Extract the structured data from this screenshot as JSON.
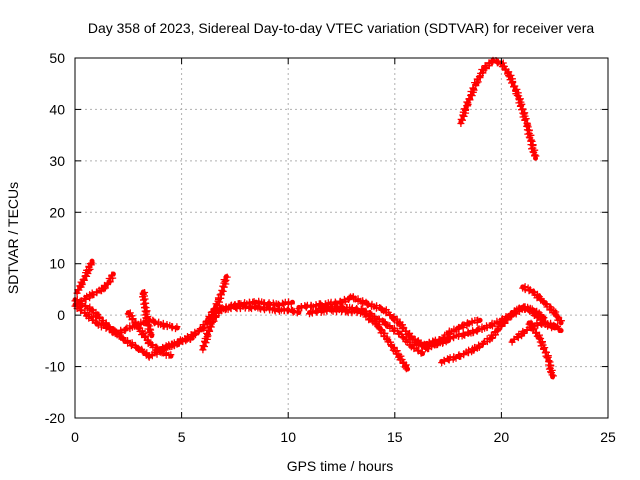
{
  "chart_data": {
    "type": "scatter",
    "title": "Day 358 of 2023, Sidereal Day-to-day VTEC variation (SDTVAR) for receiver vera",
    "xlabel": "GPS time / hours",
    "ylabel": "SDTVAR / TECUs",
    "xlim": [
      0,
      25
    ],
    "ylim": [
      -20,
      50
    ],
    "xticks": [
      0,
      5,
      10,
      15,
      20,
      25
    ],
    "yticks": [
      -20,
      -10,
      0,
      10,
      20,
      30,
      40,
      50
    ],
    "grid": true,
    "marker": "+",
    "color": "#ff0000",
    "series": [
      {
        "name": "trace-1",
        "points": [
          [
            0.0,
            3.0
          ],
          [
            0.8,
            1.0
          ],
          [
            1.5,
            -2.0
          ],
          [
            2.2,
            -4.5
          ],
          [
            3.0,
            -6.5
          ],
          [
            3.5,
            -8.0
          ],
          [
            4.2,
            -6.5
          ],
          [
            5.0,
            -5.0
          ],
          [
            5.5,
            -4.5
          ]
        ]
      },
      {
        "name": "trace-2",
        "points": [
          [
            0.0,
            2.0
          ],
          [
            1.0,
            -1.5
          ],
          [
            2.0,
            -3.5
          ],
          [
            2.8,
            -2.0
          ],
          [
            3.5,
            -1.0
          ],
          [
            4.2,
            -2.0
          ],
          [
            4.8,
            -2.5
          ]
        ]
      },
      {
        "name": "trace-3",
        "points": [
          [
            0.1,
            4.5
          ],
          [
            0.3,
            6.0
          ],
          [
            0.6,
            8.5
          ],
          [
            0.8,
            10.5
          ]
        ]
      },
      {
        "name": "trace-4",
        "points": [
          [
            0.2,
            2.5
          ],
          [
            0.8,
            4.0
          ],
          [
            1.3,
            5.0
          ],
          [
            1.6,
            6.5
          ],
          [
            1.8,
            8.0
          ]
        ]
      },
      {
        "name": "trace-5",
        "points": [
          [
            3.2,
            4.5
          ],
          [
            3.3,
            1.5
          ],
          [
            3.4,
            -1.5
          ],
          [
            3.5,
            -3.0
          ],
          [
            3.6,
            -4.0
          ]
        ]
      },
      {
        "name": "trace-6",
        "points": [
          [
            2.5,
            0.5
          ],
          [
            3.0,
            -2.5
          ],
          [
            3.5,
            -5.5
          ],
          [
            4.0,
            -7.0
          ],
          [
            4.5,
            -8.0
          ]
        ]
      },
      {
        "name": "trace-7",
        "points": [
          [
            4.0,
            -6.5
          ],
          [
            4.8,
            -5.5
          ],
          [
            5.5,
            -4.0
          ],
          [
            6.0,
            -2.5
          ],
          [
            6.3,
            -0.5
          ],
          [
            6.6,
            1.5
          ],
          [
            6.9,
            4.5
          ],
          [
            7.1,
            7.5
          ]
        ]
      },
      {
        "name": "trace-8",
        "points": [
          [
            6.0,
            -6.5
          ],
          [
            6.2,
            -4.0
          ],
          [
            6.4,
            -1.5
          ],
          [
            6.8,
            1.0
          ],
          [
            7.5,
            2.0
          ],
          [
            8.5,
            2.5
          ],
          [
            9.5,
            2.0
          ],
          [
            10.2,
            2.5
          ]
        ]
      },
      {
        "name": "trace-9",
        "points": [
          [
            6.5,
            1.0
          ],
          [
            7.5,
            1.5
          ],
          [
            8.5,
            1.5
          ],
          [
            9.5,
            1.0
          ],
          [
            10.0,
            1.0
          ],
          [
            10.5,
            0.5
          ]
        ]
      },
      {
        "name": "trace-10",
        "points": [
          [
            10.5,
            1.5
          ],
          [
            11.5,
            2.0
          ],
          [
            12.5,
            2.5
          ],
          [
            13.0,
            3.5
          ],
          [
            13.5,
            2.5
          ],
          [
            14.5,
            1.0
          ],
          [
            15.2,
            -1.5
          ],
          [
            15.8,
            -4.5
          ],
          [
            16.3,
            -6.0
          ],
          [
            17.0,
            -5.5
          ],
          [
            17.5,
            -5.0
          ]
        ]
      },
      {
        "name": "trace-11",
        "points": [
          [
            11.0,
            0.5
          ],
          [
            12.0,
            1.0
          ],
          [
            13.5,
            0.5
          ],
          [
            14.2,
            -2.0
          ],
          [
            14.7,
            -5.0
          ],
          [
            15.2,
            -8.0
          ],
          [
            15.6,
            -10.5
          ]
        ]
      },
      {
        "name": "trace-12",
        "points": [
          [
            11.5,
            1.5
          ],
          [
            12.5,
            1.5
          ],
          [
            13.5,
            1.0
          ],
          [
            14.5,
            -1.5
          ],
          [
            15.2,
            -3.5
          ],
          [
            15.8,
            -6.0
          ],
          [
            16.3,
            -7.5
          ]
        ]
      },
      {
        "name": "trace-13",
        "points": [
          [
            16.0,
            -5.0
          ],
          [
            16.5,
            -6.5
          ],
          [
            17.0,
            -5.5
          ],
          [
            17.5,
            -3.5
          ],
          [
            18.0,
            -2.5
          ],
          [
            18.5,
            -1.5
          ],
          [
            19.0,
            -1.0
          ]
        ]
      },
      {
        "name": "trace-14",
        "points": [
          [
            17.2,
            -9.0
          ],
          [
            18.0,
            -8.0
          ],
          [
            18.8,
            -6.5
          ],
          [
            19.5,
            -4.5
          ],
          [
            20.0,
            -2.0
          ],
          [
            20.5,
            0.5
          ],
          [
            21.0,
            1.5
          ],
          [
            21.5,
            1.0
          ],
          [
            22.0,
            -0.5
          ]
        ]
      },
      {
        "name": "trace-15",
        "points": [
          [
            16.5,
            -5.5
          ],
          [
            17.5,
            -4.5
          ],
          [
            18.5,
            -3.5
          ],
          [
            19.5,
            -2.0
          ],
          [
            20.5,
            0.0
          ],
          [
            21.0,
            1.5
          ],
          [
            21.5,
            0.5
          ],
          [
            22.0,
            -1.5
          ],
          [
            22.5,
            -2.5
          ]
        ]
      },
      {
        "name": "trace-16",
        "points": [
          [
            21.0,
            5.5
          ],
          [
            21.5,
            4.5
          ],
          [
            22.0,
            2.5
          ],
          [
            22.5,
            0.5
          ],
          [
            22.8,
            -1.5
          ]
        ]
      },
      {
        "name": "trace-17",
        "points": [
          [
            21.3,
            -1.5
          ],
          [
            21.8,
            -4.5
          ],
          [
            22.2,
            -8.5
          ],
          [
            22.4,
            -12.0
          ]
        ]
      },
      {
        "name": "trace-18",
        "points": [
          [
            20.5,
            -5.0
          ],
          [
            21.0,
            -3.5
          ],
          [
            21.5,
            -2.0
          ],
          [
            22.0,
            -1.5
          ],
          [
            22.5,
            -2.0
          ],
          [
            22.8,
            -3.0
          ]
        ]
      },
      {
        "name": "trace-19",
        "points": [
          [
            18.1,
            37.5
          ],
          [
            18.4,
            41.0
          ],
          [
            18.8,
            45.0
          ],
          [
            19.2,
            48.0
          ],
          [
            19.6,
            49.5
          ],
          [
            20.0,
            49.0
          ],
          [
            20.4,
            46.5
          ],
          [
            20.8,
            42.5
          ],
          [
            21.2,
            37.0
          ],
          [
            21.6,
            30.5
          ]
        ]
      }
    ]
  }
}
